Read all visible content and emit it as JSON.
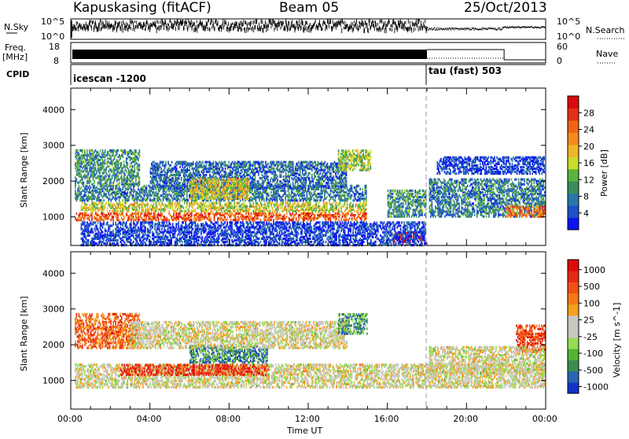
{
  "header": {
    "station": "Kapuskasing (fitACF)",
    "beam": "Beam 05",
    "date": "25/Oct/2013"
  },
  "param_panels": {
    "nsky_label": "N.Sky",
    "nsky_ticks": [
      "10^5",
      "10^0"
    ],
    "nsearch_label": "N.Search",
    "nsearch_ticks": [
      "10^5",
      "10^0"
    ],
    "freq_label_1": "Freq.",
    "freq_label_2": "[MHz]",
    "freq_ticks": [
      "18",
      "8"
    ],
    "nave_label": "Nave",
    "nave_ticks": [
      "60",
      "0"
    ],
    "cpid_label": "CPID",
    "cpid_segments": [
      {
        "name": "icescan -1200",
        "start_hour": 0,
        "end_hour": 18
      },
      {
        "name": "tau (fast) 503",
        "start_hour": 18,
        "end_hour": 24
      }
    ]
  },
  "time_axis": {
    "label": "Time UT",
    "ticks": [
      "00:00",
      "04:00",
      "08:00",
      "12:00",
      "16:00",
      "20:00",
      "00:00"
    ],
    "range_hours": [
      0,
      24
    ]
  },
  "chart_data": [
    {
      "type": "heatmap",
      "title": "Power",
      "ylabel": "Slant Range [km]",
      "yticks": [
        "1000",
        "2000",
        "3000",
        "4000"
      ],
      "ylim": [
        200,
        4600
      ],
      "xlim": [
        0,
        24
      ],
      "colorbar_label": "Power [dB]",
      "colorbar_ticks": [
        "4",
        "8",
        "12",
        "16",
        "20",
        "24",
        "28"
      ],
      "colorbar_colors": [
        "#0a14f0",
        "#1e50c8",
        "#2a78a8",
        "#3c8c5a",
        "#5ab43c",
        "#c8dc28",
        "#f0b428",
        "#f58c1e",
        "#f06414",
        "#e63214",
        "#dc0a0a"
      ],
      "regions": [
        {
          "t0": 0.2,
          "t1": 15.0,
          "r0": 900,
          "r1": 1150,
          "level": 0.8
        },
        {
          "t0": 0.5,
          "t1": 15.0,
          "r0": 1150,
          "r1": 1450,
          "level": 0.5
        },
        {
          "t0": 0.2,
          "t1": 15.0,
          "r0": 1450,
          "r1": 1900,
          "level": 0.25
        },
        {
          "t0": 0.2,
          "t1": 3.5,
          "r0": 1900,
          "r1": 2900,
          "level": 0.3
        },
        {
          "t0": 4.0,
          "t1": 14.0,
          "r0": 1800,
          "r1": 2600,
          "level": 0.2
        },
        {
          "t0": 6.0,
          "t1": 9.0,
          "r0": 1500,
          "r1": 2100,
          "level": 0.55
        },
        {
          "t0": 13.5,
          "t1": 15.2,
          "r0": 2300,
          "r1": 2900,
          "level": 0.45
        },
        {
          "t0": 16.0,
          "t1": 18.0,
          "r0": 1000,
          "r1": 1800,
          "level": 0.3
        },
        {
          "t0": 16.3,
          "t1": 17.9,
          "r0": 300,
          "r1": 600,
          "level": 0.95
        },
        {
          "t0": 18.1,
          "t1": 24.0,
          "r0": 1000,
          "r1": 2100,
          "level": 0.25
        },
        {
          "t0": 22.0,
          "t1": 24.0,
          "r0": 1000,
          "r1": 1350,
          "level": 0.75
        },
        {
          "t0": 18.5,
          "t1": 24.0,
          "r0": 2200,
          "r1": 2700,
          "level": 0.1
        },
        {
          "t0": 0.5,
          "t1": 18.0,
          "r0": 200,
          "r1": 900,
          "level": 0.1
        }
      ]
    },
    {
      "type": "heatmap",
      "title": "Velocity",
      "ylabel": "Slant Range [km]",
      "yticks": [
        "1000",
        "2000",
        "3000",
        "4000"
      ],
      "ylim": [
        200,
        4600
      ],
      "xlim": [
        0,
        24
      ],
      "colorbar_label": "Velocity [m s^-1]",
      "colorbar_ticks": [
        "1000",
        "500",
        "100",
        "25",
        "-25",
        "-100",
        "-500",
        "-1000"
      ],
      "colorbar_colors": [
        "#1432c8",
        "#2864b4",
        "#3c8c50",
        "#50b432",
        "#96dc50",
        "#c8c8c0",
        "#c8c8c0",
        "#f5a01e",
        "#f57814",
        "#f05014",
        "#e62814",
        "#dc0a0a"
      ],
      "regions": [
        {
          "t0": 0.2,
          "t1": 24.0,
          "r0": 800,
          "r1": 1500,
          "level": 0.5
        },
        {
          "t0": 0.2,
          "t1": 3.5,
          "r0": 1900,
          "r1": 2900,
          "level": 0.75
        },
        {
          "t0": 2.5,
          "t1": 10.0,
          "r0": 1150,
          "r1": 1500,
          "level": 0.85
        },
        {
          "t0": 6.0,
          "t1": 10.0,
          "r0": 1500,
          "r1": 2000,
          "level": 0.2
        },
        {
          "t0": 3.0,
          "t1": 14.0,
          "r0": 1900,
          "r1": 2700,
          "level": 0.5
        },
        {
          "t0": 13.5,
          "t1": 15.0,
          "r0": 2300,
          "r1": 2900,
          "level": 0.25
        },
        {
          "t0": 22.5,
          "t1": 24.0,
          "r0": 1800,
          "r1": 2600,
          "level": 0.85
        },
        {
          "t0": 18.1,
          "t1": 24.0,
          "r0": 1200,
          "r1": 2000,
          "level": 0.5
        }
      ]
    }
  ]
}
